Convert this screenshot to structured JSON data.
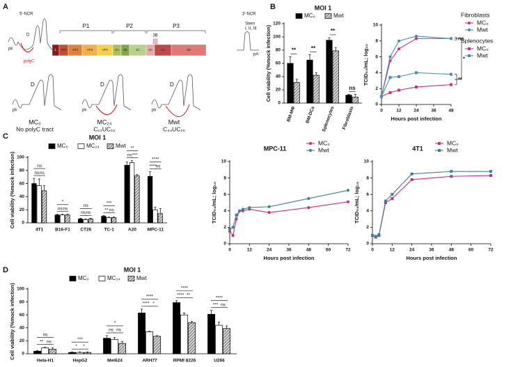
{
  "panels": [
    "A",
    "B",
    "C",
    "D"
  ],
  "diagram": {
    "ncr5": "5'-NCR",
    "ncr3": "3'-NCR",
    "pk": "pk",
    "polyc": "polyC",
    "d_label": "D",
    "pa": "pA",
    "stem": [
      "Stem",
      "I, II, III"
    ],
    "polyproteins": [
      "P1",
      "P2",
      "P3"
    ],
    "segments": [
      "L",
      "VP4",
      "VP2",
      "VP3",
      "VP1",
      "2A",
      "2B",
      "2C",
      "3A",
      "3B",
      "3C",
      "3D"
    ],
    "variants": [
      {
        "name": "MC₀",
        "desc": "No polyC tract"
      },
      {
        "name": "MC₂₄",
        "desc": "C₁₃UC₁₀"
      },
      {
        "name": "Mwt",
        "desc": "C₄₄UC₁₀"
      }
    ]
  },
  "chart_data": [
    {
      "type": "bar",
      "title": "MOI 1",
      "y_label": "Cell viability (%mock infection)",
      "categories": [
        "BM-MΦ",
        "BM-DCs",
        "Splenocytes",
        "Fibroblasts"
      ],
      "series": [
        {
          "name": "MC₀",
          "color": "#000000",
          "values": [
            60,
            65,
            95,
            12
          ],
          "errors": [
            10,
            8,
            4,
            1
          ]
        },
        {
          "name": "Mwt",
          "color": "#8c8c8c",
          "hatch": true,
          "values": [
            31,
            42,
            79,
            9
          ],
          "errors": [
            5,
            4,
            5,
            4
          ]
        }
      ],
      "significance": [
        [
          "**"
        ],
        [
          "**"
        ],
        [
          "**"
        ],
        [
          "ns"
        ]
      ],
      "ylim": [
        0,
        120
      ],
      "yticks": [
        0,
        20,
        40,
        60,
        80,
        100,
        120
      ]
    },
    {
      "type": "line",
      "y_label": "TCID₅₀/mL; log₁₀",
      "x_label": "Hours post infection",
      "x": [
        0,
        6,
        12,
        24,
        48
      ],
      "series": [
        {
          "name": "MC₀",
          "group": "Fibroblasts",
          "color": "#c8307a",
          "marker": "circle",
          "values": [
            1,
            5.5,
            7,
            8.3,
            8.3
          ]
        },
        {
          "name": "Mwt",
          "group": "Fibroblasts",
          "color": "#4a8ab5",
          "marker": "circle",
          "values": [
            1,
            6,
            8,
            8.6,
            8.3
          ]
        },
        {
          "name": "MC₀",
          "group": "Splenocytes",
          "color": "#c8307a",
          "marker": "square",
          "values": [
            1,
            1.5,
            1.8,
            2.2,
            2.5
          ]
        },
        {
          "name": "Mwt",
          "group": "Splenocytes",
          "color": "#4a8ab5",
          "marker": "square",
          "values": [
            1,
            3.4,
            3.5,
            4,
            3.8
          ]
        }
      ],
      "annotations": [
        "ns",
        "*",
        "**"
      ],
      "xlim": [
        0,
        48
      ],
      "xticks": [
        0,
        12,
        24,
        36,
        48
      ],
      "ylim": [
        0,
        10
      ],
      "yticks": [
        0,
        2,
        4,
        6,
        8,
        10
      ]
    },
    {
      "type": "bar",
      "title": "MOI 1",
      "y_label": "Cell viability (%mock infection)",
      "categories": [
        "4T1",
        "B16-F1",
        "CT26",
        "TC-1",
        "A20",
        "MPC-11"
      ],
      "series": [
        {
          "name": "MC₀",
          "color": "#000000",
          "values": [
            60,
            12,
            6,
            10,
            88,
            71
          ],
          "errors": [
            8,
            1,
            1,
            1,
            5,
            7
          ]
        },
        {
          "name": "MC₂₄",
          "color": "#ffffff",
          "values": [
            57,
            12,
            5,
            8,
            92,
            20
          ],
          "errors": [
            10,
            1,
            1,
            1,
            3,
            4
          ]
        },
        {
          "name": "Mwt",
          "color": "#8c8c8c",
          "hatch": true,
          "values": [
            49,
            12,
            6,
            8,
            72,
            14
          ],
          "errors": [
            8,
            1,
            1,
            1,
            2,
            8
          ]
        }
      ],
      "significance": [
        [
          "ns",
          "ns",
          "ns"
        ],
        [
          "*",
          "ns",
          "ns"
        ],
        [
          "ns",
          "ns",
          "ns"
        ],
        [
          "***",
          "**",
          "ns"
        ],
        [
          "**",
          "ns",
          "***"
        ],
        [
          "****",
          "****",
          "ns"
        ]
      ],
      "ylim": [
        0,
        100
      ],
      "yticks": [
        0,
        20,
        40,
        60,
        80,
        100
      ]
    },
    {
      "type": "line",
      "title": "MPC-11",
      "y_label": "TCID₅₀/mL; log₁₀",
      "x_label": "Hours post infection",
      "x": [
        0,
        2,
        4,
        6,
        8,
        12,
        24,
        48,
        72
      ],
      "series": [
        {
          "name": "MC₀",
          "color": "#c8307a",
          "marker": "circle",
          "values": [
            1.5,
            1,
            3,
            4,
            4,
            4.2,
            3.8,
            4.4,
            5.1
          ]
        },
        {
          "name": "Mwt",
          "color": "#3f7f99",
          "marker": "circle",
          "values": [
            1.8,
            2,
            3.5,
            4,
            4.2,
            4.4,
            4.5,
            5.5,
            6.5
          ]
        }
      ],
      "xlim": [
        0,
        72
      ],
      "xticks": [
        0,
        12,
        24,
        36,
        48,
        60,
        72
      ],
      "ylim": [
        0,
        10
      ],
      "yticks": [
        0,
        2,
        4,
        6,
        8,
        10
      ]
    },
    {
      "type": "line",
      "title": "4T1",
      "y_label": "TCID₅₀/mL; log₁₀",
      "x_label": "Hours post infection",
      "x": [
        0,
        2,
        4,
        8,
        12,
        24,
        48,
        72
      ],
      "series": [
        {
          "name": "MC₀",
          "color": "#c8307a",
          "marker": "square",
          "values": [
            1,
            0.8,
            1,
            5,
            5.5,
            7.8,
            8.2,
            8.3
          ]
        },
        {
          "name": "Mwt",
          "color": "#3f7f99",
          "marker": "square",
          "values": [
            1,
            0.9,
            1.1,
            5.2,
            6,
            8.5,
            8.8,
            8.8
          ]
        }
      ],
      "xlim": [
        0,
        72
      ],
      "xticks": [
        0,
        12,
        24,
        36,
        48,
        60,
        72
      ],
      "ylim": [
        0,
        10
      ],
      "yticks": [
        0,
        2,
        4,
        6,
        8,
        10
      ]
    },
    {
      "type": "bar",
      "title": "MOI 1",
      "y_label": "Cell viability (%mock infection)",
      "categories": [
        "Hela-H1",
        "HepG2",
        "Mel624",
        "ARH77",
        "RPMI 8226",
        "U266"
      ],
      "series": [
        {
          "name": "MC₀",
          "color": "#000000",
          "values": [
            4,
            2,
            24,
            63,
            79,
            61
          ],
          "errors": [
            1,
            1,
            4,
            6,
            3,
            6
          ]
        },
        {
          "name": "MC₂₄",
          "color": "#ffffff",
          "values": [
            9,
            2,
            22,
            34,
            60,
            44
          ],
          "errors": [
            1,
            1,
            3,
            1,
            3,
            5
          ]
        },
        {
          "name": "Mwt",
          "color": "#8c8c8c",
          "hatch": true,
          "values": [
            7,
            2,
            16,
            27,
            48,
            39
          ],
          "errors": [
            2,
            1,
            3,
            1,
            2,
            4
          ]
        }
      ],
      "significance": [
        [
          "ns",
          "**",
          "ns"
        ],
        [
          "***",
          "*",
          "*"
        ],
        [
          "*",
          "ns",
          "ns"
        ],
        [
          "****",
          "****",
          "*"
        ],
        [
          "****",
          "****",
          "**"
        ],
        [
          "****",
          "***",
          "ns"
        ]
      ],
      "ylim": [
        0,
        100
      ],
      "yticks": [
        0,
        20,
        40,
        60,
        80,
        100
      ]
    }
  ]
}
